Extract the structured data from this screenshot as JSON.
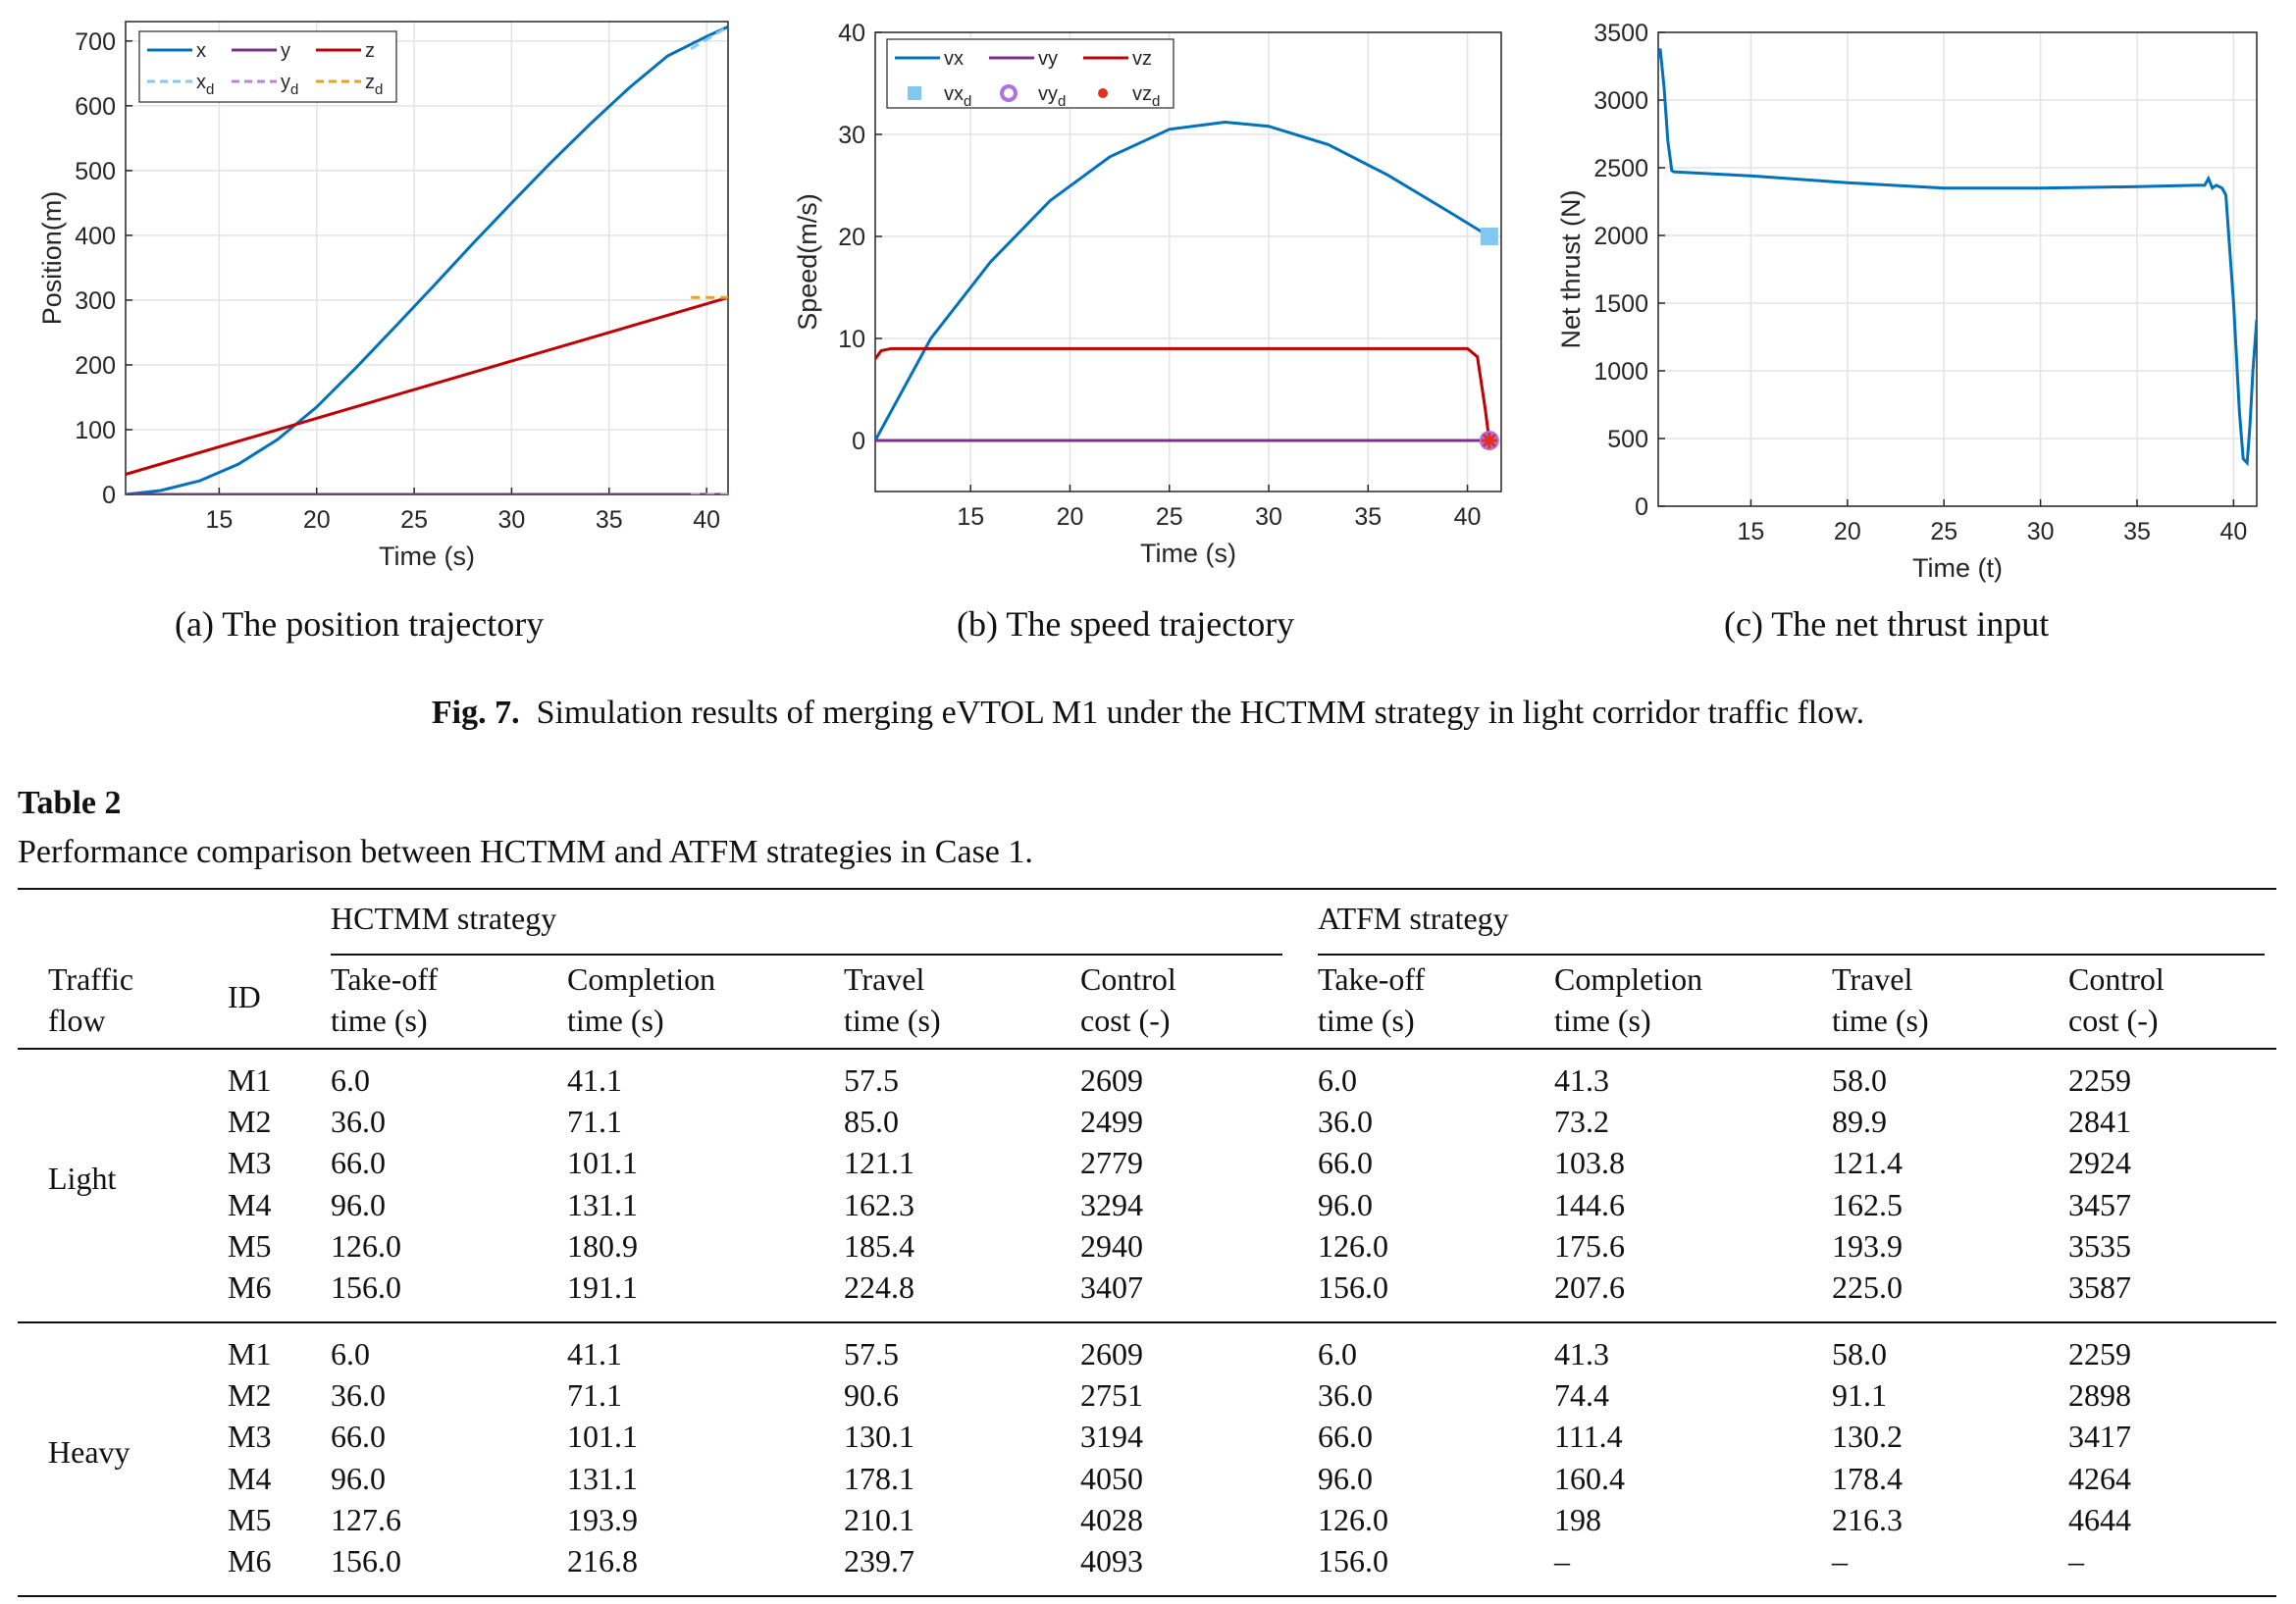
{
  "figure": {
    "label": "Fig. 7.",
    "caption": "Simulation results of merging eVTOL M1 under the HCTMM strategy in light corridor traffic flow.",
    "subcaptions": [
      "(a) The position trajectory",
      "(b) The speed trajectory",
      "(c) The net thrust input"
    ]
  },
  "chart_data": [
    {
      "type": "line",
      "xlabel": "Time (s)",
      "ylabel": "Position(m)",
      "xlim": [
        10.2,
        41.1
      ],
      "ylim": [
        0,
        730
      ],
      "xticks": [
        15,
        20,
        25,
        30,
        35,
        40
      ],
      "yticks": [
        0,
        100,
        200,
        300,
        400,
        500,
        600,
        700
      ],
      "grid": true,
      "legend_position": "top-left",
      "series": [
        {
          "name": "x",
          "color": "#0072BD",
          "style": "solid",
          "x": [
            10.2,
            12,
            14,
            16,
            18,
            20,
            22,
            24,
            26,
            28,
            30,
            32,
            34,
            36,
            38,
            40,
            41.1
          ],
          "y": [
            0,
            6,
            21,
            47,
            85,
            135,
            195,
            258,
            322,
            387,
            450,
            512,
            571,
            627,
            677,
            707,
            722
          ]
        },
        {
          "name": "y",
          "color": "#7E2F8E",
          "style": "solid",
          "x": [
            10.2,
            41.1
          ],
          "y": [
            0,
            0
          ]
        },
        {
          "name": "z",
          "color": "#C00000",
          "style": "solid",
          "x": [
            10.2,
            41.1
          ],
          "y": [
            31,
            304
          ]
        },
        {
          "name": "x_d",
          "color": "#80C8F0",
          "style": "dashed",
          "x": [
            39.2,
            41.1
          ],
          "y": [
            688,
            722
          ]
        },
        {
          "name": "y_d",
          "color": "#C080E0",
          "style": "dashed",
          "x": [
            39.2,
            41.1
          ],
          "y": [
            0,
            0
          ]
        },
        {
          "name": "z_d",
          "color": "#EDA020",
          "style": "dashed",
          "x": [
            39.2,
            41.1
          ],
          "y": [
            304,
            304
          ]
        }
      ]
    },
    {
      "type": "line",
      "xlabel": "Time (s)",
      "ylabel": "Speed(m/s)",
      "xlim": [
        10.2,
        41.7
      ],
      "ylim": [
        -5,
        40
      ],
      "xticks": [
        15,
        20,
        25,
        30,
        35,
        40
      ],
      "yticks": [
        0,
        10,
        20,
        30,
        40
      ],
      "grid": true,
      "legend_position": "top-left",
      "series": [
        {
          "name": "vx",
          "color": "#0072BD",
          "style": "solid",
          "x": [
            10.2,
            13,
            16,
            19,
            22,
            25,
            27.8,
            30,
            33,
            36,
            39,
            41.1
          ],
          "y": [
            0,
            10,
            17.5,
            23.5,
            27.8,
            30.5,
            31.2,
            30.8,
            29,
            26,
            22.5,
            20
          ]
        },
        {
          "name": "vy",
          "color": "#7E2F8E",
          "style": "solid",
          "x": [
            10.2,
            41.1
          ],
          "y": [
            0,
            0
          ]
        },
        {
          "name": "vz",
          "color": "#C00000",
          "style": "solid",
          "x": [
            10.2,
            10.5,
            11,
            40,
            40.5,
            40.9,
            41.1
          ],
          "y": [
            8,
            8.8,
            9,
            9,
            8.2,
            3,
            0
          ]
        },
        {
          "name": "vx_d",
          "color": "#80C8F0",
          "marker": "square",
          "x": [
            41.1
          ],
          "y": [
            20
          ]
        },
        {
          "name": "vy_d",
          "color": "#B070E0",
          "marker": "circle",
          "x": [
            41.1
          ],
          "y": [
            0
          ]
        },
        {
          "name": "vz_d",
          "color": "#E03020",
          "marker": "asterisk",
          "x": [
            41.1
          ],
          "y": [
            0
          ]
        }
      ]
    },
    {
      "type": "line",
      "xlabel": "Time (t)",
      "ylabel": "Net thrust (N)",
      "xlim": [
        10.2,
        41.2
      ],
      "ylim": [
        0,
        3500
      ],
      "xticks": [
        15,
        20,
        25,
        30,
        35,
        40
      ],
      "yticks": [
        0,
        500,
        1000,
        1500,
        2000,
        2500,
        3000,
        3500
      ],
      "grid": true,
      "series": [
        {
          "name": "",
          "color": "#0072BD",
          "style": "solid",
          "x": [
            10.2,
            10.3,
            10.5,
            10.7,
            10.9,
            11,
            15,
            20,
            25,
            30,
            35,
            38,
            38.5,
            38.7,
            38.9,
            39.1,
            39.4,
            39.6,
            40,
            40.3,
            40.5,
            40.7,
            40.85,
            41,
            41.2
          ],
          "y": [
            3310,
            3380,
            3100,
            2700,
            2480,
            2470,
            2440,
            2390,
            2350,
            2350,
            2360,
            2370,
            2370,
            2420,
            2350,
            2370,
            2350,
            2300,
            1500,
            700,
            350,
            320,
            600,
            1000,
            1380
          ]
        }
      ]
    }
  ],
  "table": {
    "label": "Table 2",
    "title": "Performance comparison between HCTMM and ATFM strategies in Case 1.",
    "group_headers": [
      "HCTMM strategy",
      "ATFM strategy"
    ],
    "col_headers": [
      [
        "Traffic",
        "flow"
      ],
      [
        "ID"
      ],
      [
        "Take-off",
        "time (s)"
      ],
      [
        "Completion",
        "time (s)"
      ],
      [
        "Travel",
        "time (s)"
      ],
      [
        "Control",
        "cost (-)"
      ],
      [
        "Take-off",
        "time (s)"
      ],
      [
        "Completion",
        "time (s)"
      ],
      [
        "Travel",
        "time (s)"
      ],
      [
        "Control",
        "cost (-)"
      ]
    ],
    "groups": [
      {
        "flow": "Light",
        "rows": [
          [
            "M1",
            "6.0",
            "41.1",
            "57.5",
            "2609",
            "6.0",
            "41.3",
            "58.0",
            "2259"
          ],
          [
            "M2",
            "36.0",
            "71.1",
            "85.0",
            "2499",
            "36.0",
            "73.2",
            "89.9",
            "2841"
          ],
          [
            "M3",
            "66.0",
            "101.1",
            "121.1",
            "2779",
            "66.0",
            "103.8",
            "121.4",
            "2924"
          ],
          [
            "M4",
            "96.0",
            "131.1",
            "162.3",
            "3294",
            "96.0",
            "144.6",
            "162.5",
            "3457"
          ],
          [
            "M5",
            "126.0",
            "180.9",
            "185.4",
            "2940",
            "126.0",
            "175.6",
            "193.9",
            "3535"
          ],
          [
            "M6",
            "156.0",
            "191.1",
            "224.8",
            "3407",
            "156.0",
            "207.6",
            "225.0",
            "3587"
          ]
        ]
      },
      {
        "flow": "Heavy",
        "rows": [
          [
            "M1",
            "6.0",
            "41.1",
            "57.5",
            "2609",
            "6.0",
            "41.3",
            "58.0",
            "2259"
          ],
          [
            "M2",
            "36.0",
            "71.1",
            "90.6",
            "2751",
            "36.0",
            "74.4",
            "91.1",
            "2898"
          ],
          [
            "M3",
            "66.0",
            "101.1",
            "130.1",
            "3194",
            "66.0",
            "111.4",
            "130.2",
            "3417"
          ],
          [
            "M4",
            "96.0",
            "131.1",
            "178.1",
            "4050",
            "96.0",
            "160.4",
            "178.4",
            "4264"
          ],
          [
            "M5",
            "127.6",
            "193.9",
            "210.1",
            "4028",
            "126.0",
            "198",
            "216.3",
            "4644"
          ],
          [
            "M6",
            "156.0",
            "216.8",
            "239.7",
            "4093",
            "156.0",
            "–",
            "–",
            "–"
          ]
        ]
      }
    ]
  }
}
